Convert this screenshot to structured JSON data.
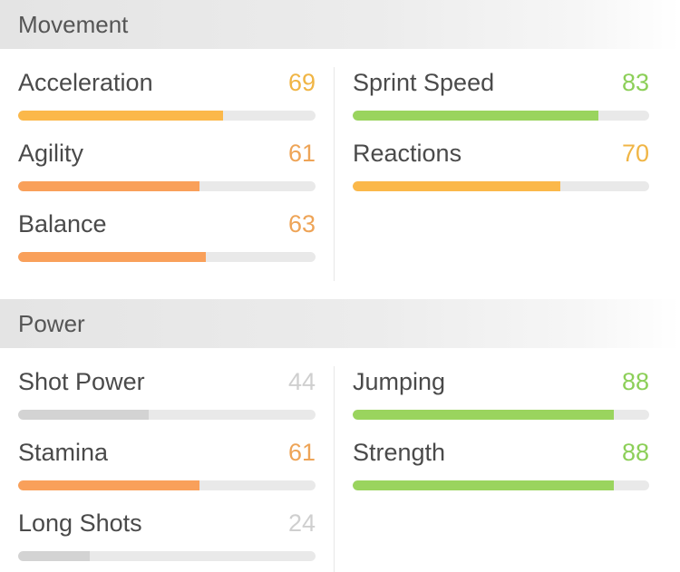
{
  "colors": {
    "yellow": "#fbb84a",
    "orange": "#f9a05a",
    "green": "#9ad45e",
    "grey": "#d3d3d3",
    "value_yellow": "#f0b545",
    "value_orange": "#eea457",
    "value_green": "#8ccf58",
    "value_grey": "#cfcfcf"
  },
  "sections": [
    {
      "title": "Movement",
      "left": [
        {
          "label": "Acceleration",
          "value": "69",
          "level": 0.69,
          "tone": "yellow"
        },
        {
          "label": "Agility",
          "value": "61",
          "level": 0.61,
          "tone": "orange"
        },
        {
          "label": "Balance",
          "value": "63",
          "level": 0.63,
          "tone": "orange"
        }
      ],
      "right": [
        {
          "label": "Sprint Speed",
          "value": "83",
          "level": 0.83,
          "tone": "green"
        },
        {
          "label": "Reactions",
          "value": "70",
          "level": 0.7,
          "tone": "yellow"
        }
      ]
    },
    {
      "title": "Power",
      "left": [
        {
          "label": "Shot Power",
          "value": "44",
          "level": 0.44,
          "tone": "grey"
        },
        {
          "label": "Stamina",
          "value": "61",
          "level": 0.61,
          "tone": "orange"
        },
        {
          "label": "Long Shots",
          "value": "24",
          "level": 0.24,
          "tone": "grey"
        }
      ],
      "right": [
        {
          "label": "Jumping",
          "value": "88",
          "level": 0.88,
          "tone": "green"
        },
        {
          "label": "Strength",
          "value": "88",
          "level": 0.88,
          "tone": "green"
        }
      ]
    }
  ]
}
